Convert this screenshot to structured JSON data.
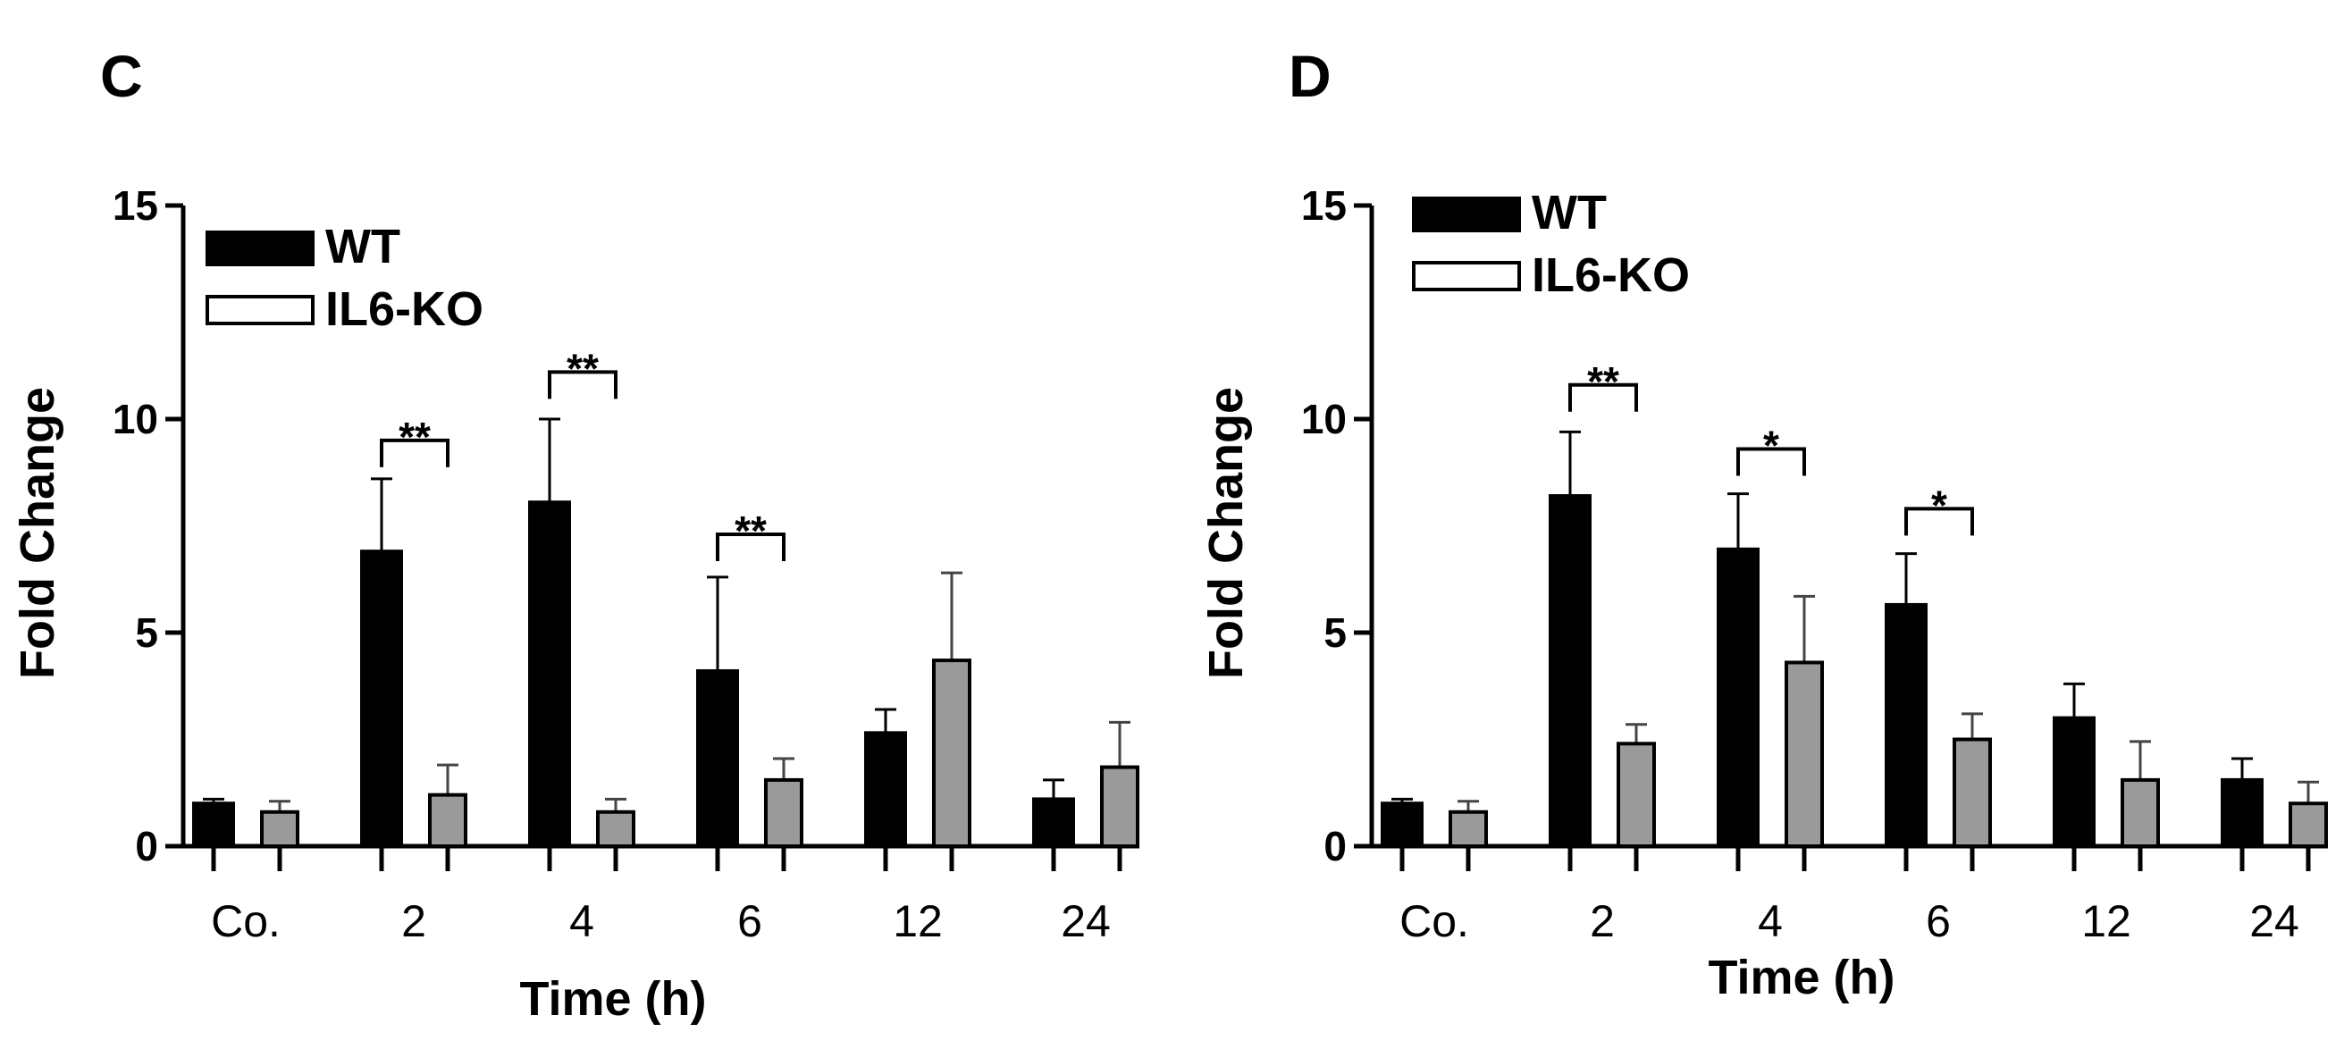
{
  "chart_data": [
    {
      "panel": "C",
      "type": "bar",
      "ylabel": "Fold Change",
      "xlabel": "Time (h)",
      "ylim": [
        0,
        15
      ],
      "yticks": [
        "0",
        "5",
        "10",
        "15"
      ],
      "categories": [
        "Co.",
        "2",
        "4",
        "6",
        "12",
        "24"
      ],
      "legend_position": "top-left",
      "series": [
        {
          "name": "WT",
          "color": "#000000",
          "values": [
            1.0,
            6.9,
            8.05,
            4.1,
            2.65,
            1.1
          ],
          "errors": [
            0.1,
            1.7,
            1.95,
            2.2,
            0.55,
            0.45
          ]
        },
        {
          "name": "IL6-KO",
          "color": "#9a9a9a",
          "values": [
            0.8,
            1.2,
            0.8,
            1.55,
            4.35,
            1.85
          ],
          "errors": [
            0.25,
            0.7,
            0.3,
            0.5,
            2.05,
            1.05
          ]
        }
      ],
      "significance": [
        {
          "category": "2",
          "label": "**",
          "y": 9.5
        },
        {
          "category": "4",
          "label": "**",
          "y": 11.1
        },
        {
          "category": "6",
          "label": "**",
          "y": 7.3
        }
      ]
    },
    {
      "panel": "D",
      "type": "bar",
      "ylabel": "Fold Change",
      "xlabel": "Time (h)",
      "ylim": [
        0,
        15
      ],
      "yticks": [
        "0",
        "5",
        "10",
        "15"
      ],
      "categories": [
        "Co.",
        "2",
        "4",
        "6",
        "12",
        "24"
      ],
      "legend_position": "top-left",
      "series": [
        {
          "name": "WT",
          "color": "#000000",
          "values": [
            1.0,
            8.2,
            6.95,
            5.65,
            3.0,
            1.55
          ],
          "errors": [
            0.1,
            1.5,
            1.3,
            1.2,
            0.8,
            0.5
          ]
        },
        {
          "name": "IL6-KO",
          "color": "#9a9a9a",
          "values": [
            0.8,
            2.4,
            4.3,
            2.5,
            1.55,
            1.0
          ],
          "errors": [
            0.25,
            0.45,
            1.55,
            0.6,
            0.9,
            0.5
          ]
        }
      ],
      "significance": [
        {
          "category": "2",
          "label": "**",
          "y": 10.8
        },
        {
          "category": "4",
          "label": "*",
          "y": 9.3
        },
        {
          "category": "6",
          "label": "*",
          "y": 7.9
        }
      ]
    }
  ]
}
